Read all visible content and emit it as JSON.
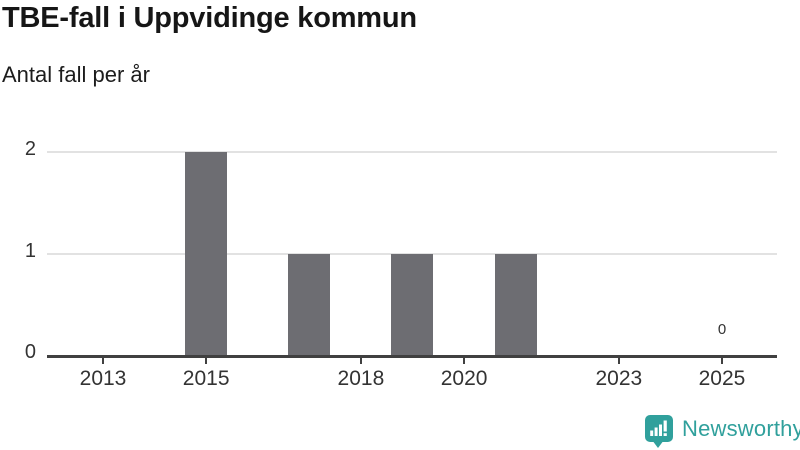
{
  "header": {
    "title": "TBE-fall i Uppvidinge kommun",
    "subtitle": "Antal fall per år"
  },
  "chart_data": {
    "type": "bar",
    "title": "TBE-fall i Uppvidinge kommun",
    "subtitle": "Antal fall per år",
    "xlabel": "",
    "ylabel": "Antal fall per år",
    "categories": [
      2013,
      2014,
      2015,
      2016,
      2017,
      2018,
      2019,
      2020,
      2021,
      2022,
      2023,
      2024,
      2025
    ],
    "values": [
      0,
      0,
      2,
      0,
      1,
      0,
      1,
      0,
      1,
      0,
      0,
      0,
      0
    ],
    "x_tick_years": [
      2013,
      2015,
      2018,
      2020,
      2023,
      2025
    ],
    "x_tick_labels": [
      "2013",
      "2015",
      "2018",
      "2020",
      "2023",
      "2025"
    ],
    "y_ticks": [
      0,
      1,
      2
    ],
    "ylim": [
      0,
      2
    ],
    "grid": "horizontal-only",
    "legend": "none",
    "annotation": {
      "text": "0",
      "year": 2025,
      "value": 0
    },
    "bar_color": "#6d6d72",
    "grid_color": "#e2e2e2",
    "axis_color": "#404040",
    "tick_label_color": "#333333"
  },
  "footer": {
    "brand": "Newsworthy",
    "brand_color": "#30a09c",
    "icon": "newsworthy-bar-chart-speech-bubble-icon"
  }
}
